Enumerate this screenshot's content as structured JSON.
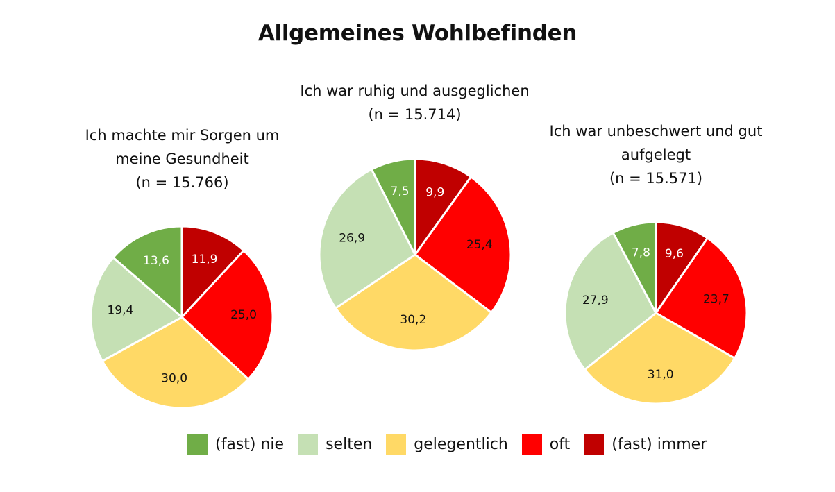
{
  "title": "Allgemeines Wohlbefinden",
  "legend": [
    {
      "label": "(fast) nie",
      "color": "#70ad47"
    },
    {
      "label": "selten",
      "color": "#c5e0b4"
    },
    {
      "label": "gelegentlich",
      "color": "#ffd966"
    },
    {
      "label": "oft",
      "color": "#ff0000"
    },
    {
      "label": "(fast) immer",
      "color": "#c00000"
    }
  ],
  "chart_data": [
    {
      "type": "pie",
      "title_lines": [
        "Ich machte mir Sorgen um",
        "meine Gesundheit",
        "(n = 15.766)"
      ],
      "slices": [
        {
          "name": "(fast) immer",
          "value": 11.9,
          "label": "11,9",
          "color": "#c00000",
          "label_color": "#ffffff"
        },
        {
          "name": "oft",
          "value": 25.0,
          "label": "25,0",
          "color": "#ff0000",
          "label_color": "#111111"
        },
        {
          "name": "gelegentlich",
          "value": 30.0,
          "label": "30,0",
          "color": "#ffd966",
          "label_color": "#111111"
        },
        {
          "name": "selten",
          "value": 19.4,
          "label": "19,4",
          "color": "#c5e0b4",
          "label_color": "#111111"
        },
        {
          "name": "(fast) nie",
          "value": 13.6,
          "label": "13,6",
          "color": "#70ad47",
          "label_color": "#ffffff"
        }
      ]
    },
    {
      "type": "pie",
      "title_lines": [
        "Ich war ruhig und ausgeglichen",
        "(n = 15.714)"
      ],
      "slices": [
        {
          "name": "(fast) immer",
          "value": 9.9,
          "label": "9,9",
          "color": "#c00000",
          "label_color": "#ffffff"
        },
        {
          "name": "oft",
          "value": 25.4,
          "label": "25,4",
          "color": "#ff0000",
          "label_color": "#111111"
        },
        {
          "name": "gelegentlich",
          "value": 30.2,
          "label": "30,2",
          "color": "#ffd966",
          "label_color": "#111111"
        },
        {
          "name": "selten",
          "value": 26.9,
          "label": "26,9",
          "color": "#c5e0b4",
          "label_color": "#111111"
        },
        {
          "name": "(fast) nie",
          "value": 7.5,
          "label": "7,5",
          "color": "#70ad47",
          "label_color": "#ffffff"
        }
      ]
    },
    {
      "type": "pie",
      "title_lines": [
        "Ich war unbeschwert und gut",
        "aufgelegt",
        "(n = 15.571)"
      ],
      "slices": [
        {
          "name": "(fast) immer",
          "value": 9.6,
          "label": "9,6",
          "color": "#c00000",
          "label_color": "#ffffff"
        },
        {
          "name": "oft",
          "value": 23.7,
          "label": "23,7",
          "color": "#ff0000",
          "label_color": "#111111"
        },
        {
          "name": "gelegentlich",
          "value": 31.0,
          "label": "31,0",
          "color": "#ffd966",
          "label_color": "#111111"
        },
        {
          "name": "selten",
          "value": 27.9,
          "label": "27,9",
          "color": "#c5e0b4",
          "label_color": "#111111"
        },
        {
          "name": "(fast) nie",
          "value": 7.8,
          "label": "7,8",
          "color": "#70ad47",
          "label_color": "#ffffff"
        }
      ]
    }
  ]
}
